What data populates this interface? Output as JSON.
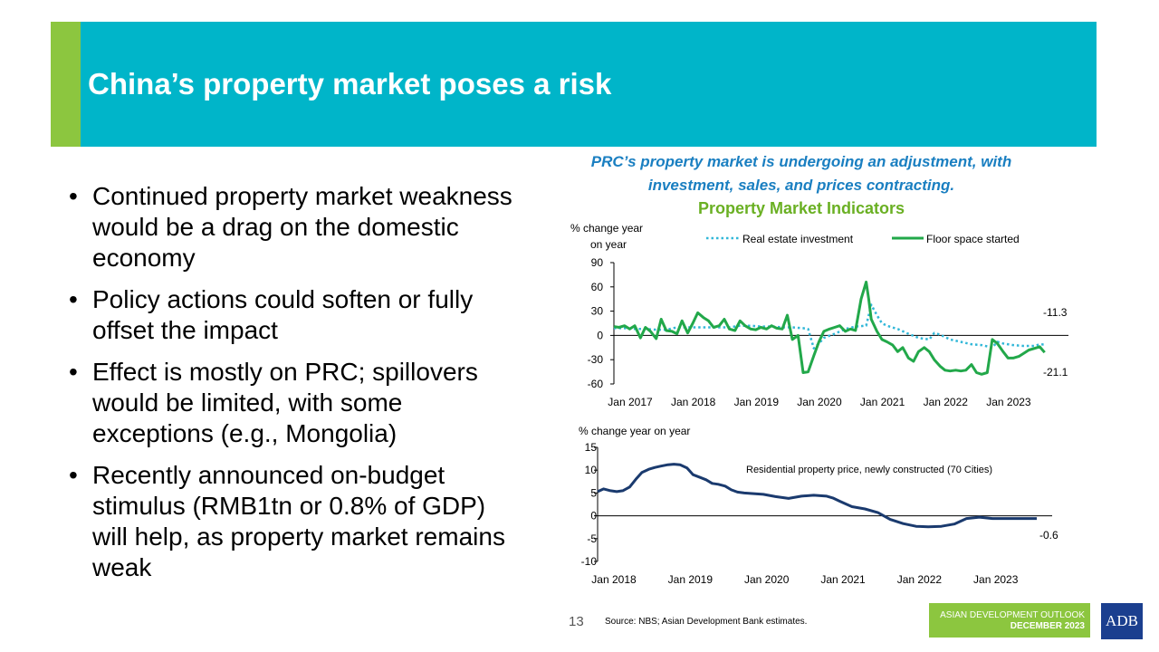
{
  "slide": {
    "title": "China’s property market poses a risk",
    "page_number": "13",
    "source": "Source: NBS; Asian Development Bank estimates.",
    "publication_line1": "ASIAN DEVELOPMENT OUTLOOK",
    "publication_line2": "DECEMBER 2023",
    "logo_text": "ADB"
  },
  "bullets": [
    "Continued property market weakness would be a drag on the domestic economy",
    "Policy actions could soften or fully offset the impact",
    "Effect is mostly on PRC; spillovers would be limited, with some exceptions (e.g., Mongolia)",
    "Recently announced on-budget stimulus (RMB1tn or 0.8% of GDP) will help, as property market remains weak"
  ],
  "colors": {
    "banner": "#00b5c9",
    "accent": "#8cc63f",
    "subtitle": "#1a7fc1",
    "chart_title": "#6ab023",
    "investment": "#31b7d8",
    "floor_space": "#22a84a",
    "residential": "#1a3a6e"
  },
  "chart_header": {
    "subtitle_line1": "PRC’s property market is undergoing an adjustment, with",
    "subtitle_line2": "investment, sales, and prices contracting.",
    "title": "Property Market Indicators"
  },
  "chart_data": [
    {
      "type": "line",
      "title": "Property Market Indicators",
      "ylabel_line1": "% change year",
      "ylabel_line2": "on year",
      "ylim": [
        -60,
        90
      ],
      "yticks": [
        90,
        60,
        30,
        0,
        -30,
        -60
      ],
      "ytick_labels": [
        "90",
        "60",
        "30",
        "0",
        "-30",
        "-60"
      ],
      "xlim": [
        2017.0,
        2023.92
      ],
      "xticks": [
        2017,
        2018,
        2019,
        2020,
        2021,
        2022,
        2023
      ],
      "xtick_labels": [
        "Jan 2017",
        "Jan 2018",
        "Jan 2019",
        "Jan 2020",
        "Jan 2021",
        "Jan 2022",
        "Jan 2023"
      ],
      "series": [
        {
          "name": "Real estate investment",
          "style": "dotted",
          "x": [
            2017.0,
            2017.17,
            2017.33,
            2017.5,
            2017.67,
            2017.83,
            2018.0,
            2018.17,
            2018.33,
            2018.5,
            2018.67,
            2018.83,
            2019.0,
            2019.17,
            2019.33,
            2019.5,
            2019.67,
            2019.83,
            2020.0,
            2020.08,
            2020.17,
            2020.25,
            2020.33,
            2020.5,
            2020.67,
            2020.83,
            2021.0,
            2021.08,
            2021.17,
            2021.25,
            2021.33,
            2021.5,
            2021.67,
            2021.83,
            2022.0,
            2022.08,
            2022.17,
            2022.33,
            2022.5,
            2022.67,
            2022.83,
            2023.0,
            2023.08,
            2023.17,
            2023.33,
            2023.5,
            2023.67,
            2023.75,
            2023.83
          ],
          "values": [
            9,
            9,
            8,
            8,
            7,
            7,
            10,
            10,
            10,
            10,
            10,
            10,
            12,
            12,
            11,
            11,
            10,
            10,
            9,
            8,
            -16,
            -10,
            -3,
            2,
            8,
            11,
            12,
            38,
            25,
            15,
            12,
            8,
            2,
            -3,
            -5,
            3,
            1,
            -5,
            -8,
            -11,
            -12,
            -15,
            -8,
            -10,
            -12,
            -13,
            -13,
            -11,
            -11.3
          ]
        },
        {
          "name": "Floor space started",
          "style": "solid",
          "x": [
            2017.0,
            2017.08,
            2017.17,
            2017.25,
            2017.33,
            2017.42,
            2017.5,
            2017.58,
            2017.67,
            2017.75,
            2017.83,
            2017.92,
            2018.0,
            2018.08,
            2018.17,
            2018.25,
            2018.33,
            2018.42,
            2018.5,
            2018.58,
            2018.67,
            2018.75,
            2018.83,
            2018.92,
            2019.0,
            2019.08,
            2019.17,
            2019.25,
            2019.33,
            2019.42,
            2019.5,
            2019.58,
            2019.67,
            2019.75,
            2019.83,
            2019.92,
            2020.0,
            2020.08,
            2020.17,
            2020.25,
            2020.33,
            2020.42,
            2020.5,
            2020.58,
            2020.67,
            2020.75,
            2020.83,
            2020.92,
            2021.0,
            2021.04,
            2021.08,
            2021.17,
            2021.25,
            2021.33,
            2021.42,
            2021.5,
            2021.58,
            2021.67,
            2021.75,
            2021.83,
            2021.92,
            2022.0,
            2022.08,
            2022.17,
            2022.25,
            2022.33,
            2022.42,
            2022.5,
            2022.58,
            2022.67,
            2022.75,
            2022.83,
            2022.92,
            2023.0,
            2023.08,
            2023.17,
            2023.25,
            2023.33,
            2023.42,
            2023.5,
            2023.58,
            2023.67,
            2023.75,
            2023.83
          ],
          "values": [
            11,
            10,
            12,
            8,
            12,
            -3,
            10,
            5,
            -4,
            20,
            6,
            5,
            2,
            18,
            3,
            15,
            28,
            22,
            18,
            10,
            12,
            20,
            8,
            6,
            18,
            12,
            8,
            7,
            10,
            8,
            12,
            9,
            8,
            25,
            -5,
            0,
            -46,
            -45,
            -25,
            -8,
            5,
            8,
            10,
            12,
            5,
            8,
            6,
            45,
            66,
            45,
            20,
            5,
            -5,
            -8,
            -12,
            -20,
            -15,
            -28,
            -32,
            -20,
            -15,
            -20,
            -30,
            -38,
            -43,
            -44,
            -43,
            -44,
            -43,
            -36,
            -46,
            -48,
            -46,
            -5,
            -10,
            -20,
            -28,
            -28,
            -26,
            -22,
            -18,
            -16,
            -14,
            -21.1
          ]
        }
      ],
      "annotations": [
        {
          "text": "-11.3",
          "x": 2023.83,
          "y": -11.3
        },
        {
          "text": "-21.1",
          "x": 2023.83,
          "y": -21.1
        }
      ],
      "legend": "top-center",
      "grid": false
    },
    {
      "type": "line",
      "ylabel": "% change year on year",
      "ylim": [
        -10,
        15
      ],
      "yticks": [
        15,
        10,
        5,
        0,
        -5,
        -10
      ],
      "ytick_labels": [
        "15",
        "10",
        "5",
        "0",
        "-5",
        "-10"
      ],
      "xlim": [
        2018.0,
        2023.75
      ],
      "xticks": [
        2018,
        2019,
        2020,
        2021,
        2022,
        2023
      ],
      "xtick_labels": [
        "Jan 2018",
        "Jan 2019",
        "Jan 2020",
        "Jan 2021",
        "Jan 2022",
        "Jan 2023"
      ],
      "series": [
        {
          "name": "Residential property price, newly constructed (70 Cities)",
          "style": "solid",
          "x": [
            2018.0,
            2018.08,
            2018.17,
            2018.25,
            2018.33,
            2018.42,
            2018.5,
            2018.58,
            2018.67,
            2018.75,
            2018.83,
            2018.92,
            2019.0,
            2019.08,
            2019.17,
            2019.25,
            2019.33,
            2019.42,
            2019.5,
            2019.58,
            2019.67,
            2019.75,
            2019.83,
            2019.92,
            2020.0,
            2020.17,
            2020.33,
            2020.5,
            2020.67,
            2020.83,
            2021.0,
            2021.08,
            2021.17,
            2021.25,
            2021.33,
            2021.5,
            2021.67,
            2021.83,
            2022.0,
            2022.17,
            2022.33,
            2022.5,
            2022.67,
            2022.83,
            2023.0,
            2023.17,
            2023.33,
            2023.5,
            2023.67,
            2023.75
          ],
          "values": [
            5.3,
            5.9,
            5.5,
            5.3,
            5.5,
            6.3,
            8.0,
            9.5,
            10.2,
            10.6,
            10.9,
            11.2,
            11.3,
            11.2,
            10.5,
            9.0,
            8.5,
            7.9,
            7.1,
            6.9,
            6.5,
            5.7,
            5.2,
            5.0,
            4.9,
            4.7,
            4.2,
            3.8,
            4.3,
            4.5,
            4.3,
            3.9,
            3.2,
            2.6,
            2.0,
            1.5,
            0.7,
            -0.8,
            -1.7,
            -2.3,
            -2.4,
            -2.3,
            -1.8,
            -0.6,
            -0.3,
            -0.6,
            -0.6,
            -0.6,
            -0.6,
            -0.6
          ]
        }
      ],
      "annotations": [
        {
          "text": "-0.6",
          "x": 2023.75,
          "y": -0.6
        }
      ],
      "series_label": "Residential property price, newly constructed (70 Cities)",
      "grid": false
    }
  ]
}
